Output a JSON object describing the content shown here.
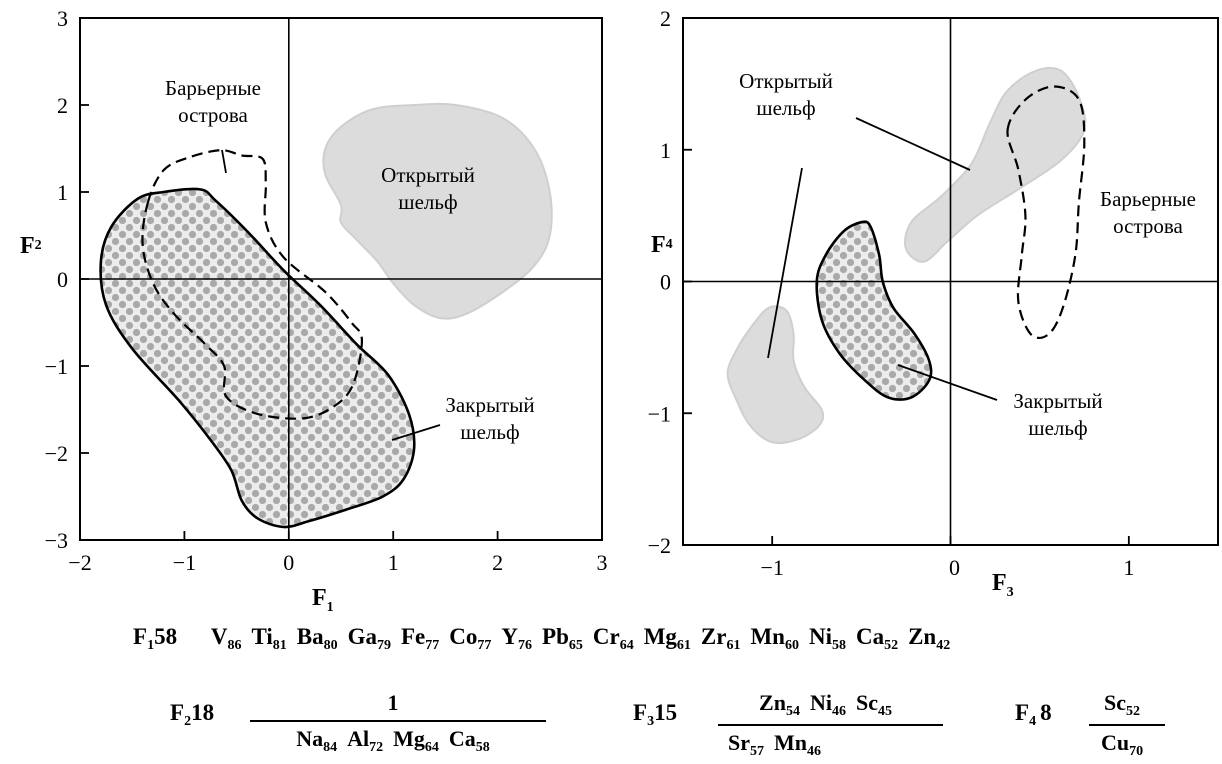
{
  "chart_data": [
    {
      "type": "scatter",
      "xlabel": "F",
      "xlabel_sub": "1",
      "ylabel": "F",
      "ylabel_sub": "2",
      "xlim": [
        -2,
        3
      ],
      "ylim": [
        -3,
        3
      ],
      "xticks": [
        "−2",
        "−1",
        "0",
        "1",
        "2",
        "3"
      ],
      "yticks": [
        "−3",
        "−2",
        "−1",
        "0",
        "1",
        "2",
        "3"
      ],
      "grid": false,
      "regions": [
        {
          "name": "Открытый шельф",
          "label_lines": [
            "Открытый",
            "шельф"
          ],
          "style": "gray-fill",
          "polygon": [
            [
              0.5,
              0.85
            ],
            [
              0.35,
              1.2
            ],
            [
              0.35,
              1.5
            ],
            [
              0.5,
              1.75
            ],
            [
              0.8,
              1.95
            ],
            [
              1.2,
              2.0
            ],
            [
              1.6,
              2.0
            ],
            [
              2.05,
              1.85
            ],
            [
              2.35,
              1.5
            ],
            [
              2.5,
              1.0
            ],
            [
              2.5,
              0.5
            ],
            [
              2.35,
              0.15
            ],
            [
              2.05,
              -0.15
            ],
            [
              1.7,
              -0.4
            ],
            [
              1.45,
              -0.45
            ],
            [
              1.2,
              -0.3
            ],
            [
              1.0,
              -0.05
            ],
            [
              0.85,
              0.2
            ],
            [
              0.65,
              0.45
            ],
            [
              0.5,
              0.65
            ]
          ]
        },
        {
          "name": "Закрытый шельф",
          "label_lines": [
            "Закрытый",
            "шельф"
          ],
          "style": "dotted-fill",
          "polygon": [
            [
              -0.85,
              1.03
            ],
            [
              -0.7,
              0.9
            ],
            [
              -0.4,
              0.55
            ],
            [
              -0.05,
              0.1
            ],
            [
              0.3,
              -0.3
            ],
            [
              0.65,
              -0.75
            ],
            [
              0.95,
              -1.1
            ],
            [
              1.15,
              -1.55
            ],
            [
              1.2,
              -1.95
            ],
            [
              1.1,
              -2.3
            ],
            [
              0.9,
              -2.5
            ],
            [
              0.55,
              -2.65
            ],
            [
              0.2,
              -2.78
            ],
            [
              -0.05,
              -2.85
            ],
            [
              -0.3,
              -2.75
            ],
            [
              -0.45,
              -2.55
            ],
            [
              -0.55,
              -2.2
            ],
            [
              -0.75,
              -1.85
            ],
            [
              -1.05,
              -1.4
            ],
            [
              -1.5,
              -0.8
            ],
            [
              -1.75,
              -0.3
            ],
            [
              -1.8,
              0.2
            ],
            [
              -1.7,
              0.6
            ],
            [
              -1.45,
              0.92
            ],
            [
              -1.2,
              1.0
            ]
          ]
        },
        {
          "name": "Барьерные острова",
          "label_lines": [
            "Барьерные",
            "острова"
          ],
          "style": "dashed-outline",
          "polygon": [
            [
              -1.35,
              0.88
            ],
            [
              -1.2,
              1.25
            ],
            [
              -0.95,
              1.4
            ],
            [
              -0.65,
              1.48
            ],
            [
              -0.45,
              1.42
            ],
            [
              -0.25,
              1.38
            ],
            [
              -0.22,
              1.1
            ],
            [
              -0.22,
              0.65
            ],
            [
              -0.05,
              0.25
            ],
            [
              0.35,
              -0.15
            ],
            [
              0.6,
              -0.5
            ],
            [
              0.7,
              -0.7
            ],
            [
              0.62,
              -1.2
            ],
            [
              0.45,
              -1.45
            ],
            [
              0.15,
              -1.6
            ],
            [
              -0.3,
              -1.55
            ],
            [
              -0.6,
              -1.35
            ],
            [
              -0.62,
              -1.0
            ],
            [
              -0.8,
              -0.75
            ],
            [
              -1.1,
              -0.4
            ],
            [
              -1.3,
              -0.05
            ],
            [
              -1.4,
              0.4
            ]
          ]
        }
      ]
    },
    {
      "type": "scatter",
      "xlabel": "F",
      "xlabel_sub": "3",
      "ylabel": "F",
      "ylabel_sub": "4",
      "xlim": [
        -1.5,
        1.5
      ],
      "ylim": [
        -2,
        2
      ],
      "xticks": [
        "−1",
        "0",
        "1"
      ],
      "yticks": [
        "−2",
        "−1",
        "0",
        "1",
        "2"
      ],
      "grid": false,
      "regions": [
        {
          "name": "Открытый шельф (верх)",
          "label_lines": [
            "Открытый",
            "шельф"
          ],
          "style": "gray-fill",
          "polygon": [
            [
              -0.22,
              0.45
            ],
            [
              -0.05,
              0.65
            ],
            [
              0.12,
              0.9
            ],
            [
              0.22,
              1.2
            ],
            [
              0.32,
              1.45
            ],
            [
              0.48,
              1.6
            ],
            [
              0.62,
              1.6
            ],
            [
              0.72,
              1.4
            ],
            [
              0.75,
              1.15
            ],
            [
              0.62,
              0.92
            ],
            [
              0.38,
              0.7
            ],
            [
              0.15,
              0.5
            ],
            [
              -0.02,
              0.3
            ],
            [
              -0.15,
              0.15
            ],
            [
              -0.25,
              0.25
            ]
          ]
        },
        {
          "name": "Открытый шельф (низ)",
          "style": "gray-fill",
          "polygon": [
            [
              -1.2,
              -0.52
            ],
            [
              -1.12,
              -0.35
            ],
            [
              -1.02,
              -0.2
            ],
            [
              -0.92,
              -0.22
            ],
            [
              -0.88,
              -0.4
            ],
            [
              -0.88,
              -0.6
            ],
            [
              -0.82,
              -0.8
            ],
            [
              -0.72,
              -0.98
            ],
            [
              -0.74,
              -1.1
            ],
            [
              -0.86,
              -1.2
            ],
            [
              -1.0,
              -1.22
            ],
            [
              -1.12,
              -1.1
            ],
            [
              -1.2,
              -0.9
            ],
            [
              -1.25,
              -0.7
            ]
          ]
        },
        {
          "name": "Закрытый шельф",
          "label_lines": [
            "Закрытый",
            "шельф"
          ],
          "style": "dotted-fill",
          "polygon": [
            [
              -0.5,
              0.45
            ],
            [
              -0.6,
              0.38
            ],
            [
              -0.7,
              0.2
            ],
            [
              -0.75,
              0.0
            ],
            [
              -0.72,
              -0.3
            ],
            [
              -0.62,
              -0.55
            ],
            [
              -0.48,
              -0.75
            ],
            [
              -0.35,
              -0.88
            ],
            [
              -0.22,
              -0.88
            ],
            [
              -0.12,
              -0.75
            ],
            [
              -0.12,
              -0.6
            ],
            [
              -0.2,
              -0.4
            ],
            [
              -0.32,
              -0.2
            ],
            [
              -0.38,
              0.0
            ],
            [
              -0.4,
              0.2
            ],
            [
              -0.45,
              0.42
            ]
          ]
        },
        {
          "name": "Барьерные острова",
          "label_lines": [
            "Барьерные",
            "острова"
          ],
          "style": "dashed-outline",
          "polygon": [
            [
              0.32,
              1.15
            ],
            [
              0.42,
              1.38
            ],
            [
              0.58,
              1.48
            ],
            [
              0.72,
              1.38
            ],
            [
              0.75,
              1.05
            ],
            [
              0.72,
              0.6
            ],
            [
              0.7,
              0.2
            ],
            [
              0.63,
              -0.2
            ],
            [
              0.55,
              -0.4
            ],
            [
              0.45,
              -0.4
            ],
            [
              0.38,
              -0.15
            ],
            [
              0.4,
              0.2
            ],
            [
              0.42,
              0.5
            ],
            [
              0.38,
              0.85
            ]
          ]
        }
      ]
    }
  ],
  "formulas": {
    "f1": {
      "name": "F",
      "sub": "1",
      "num": "58",
      "elements": [
        {
          "el": "V",
          "v": "86"
        },
        {
          "el": "Ti",
          "v": "81"
        },
        {
          "el": "Ba",
          "v": "80"
        },
        {
          "el": "Ga",
          "v": "79"
        },
        {
          "el": "Fe",
          "v": "77"
        },
        {
          "el": "Co",
          "v": "77"
        },
        {
          "el": "Y",
          "v": "76"
        },
        {
          "el": "Pb",
          "v": "65"
        },
        {
          "el": "Cr",
          "v": "64"
        },
        {
          "el": "Mg",
          "v": "61"
        },
        {
          "el": "Zr",
          "v": "61"
        },
        {
          "el": "Mn",
          "v": "60"
        },
        {
          "el": "Ni",
          "v": "58"
        },
        {
          "el": "Ca",
          "v": "52"
        },
        {
          "el": "Zn",
          "v": "42"
        }
      ]
    },
    "f2": {
      "name": "F",
      "sub": "2",
      "num": "18",
      "numerator": [
        {
          "el": "1",
          "v": ""
        }
      ],
      "denominator": [
        {
          "el": "Na",
          "v": "84"
        },
        {
          "el": "Al",
          "v": "72"
        },
        {
          "el": "Mg",
          "v": "64"
        },
        {
          "el": "Ca",
          "v": "58"
        }
      ]
    },
    "f3": {
      "name": "F",
      "sub": "3",
      "num": "15",
      "numerator": [
        {
          "el": "Zn",
          "v": "54"
        },
        {
          "el": "Ni",
          "v": "46"
        },
        {
          "el": "Sc",
          "v": "45"
        }
      ],
      "denominator": [
        {
          "el": "Sr",
          "v": "57"
        },
        {
          "el": "Mn",
          "v": "46"
        }
      ]
    },
    "f4": {
      "name": "F",
      "sub": "4",
      "num": "8",
      "numerator": [
        {
          "el": "Sc",
          "v": "52"
        }
      ],
      "denominator": [
        {
          "el": "Cu",
          "v": "70"
        }
      ]
    }
  }
}
